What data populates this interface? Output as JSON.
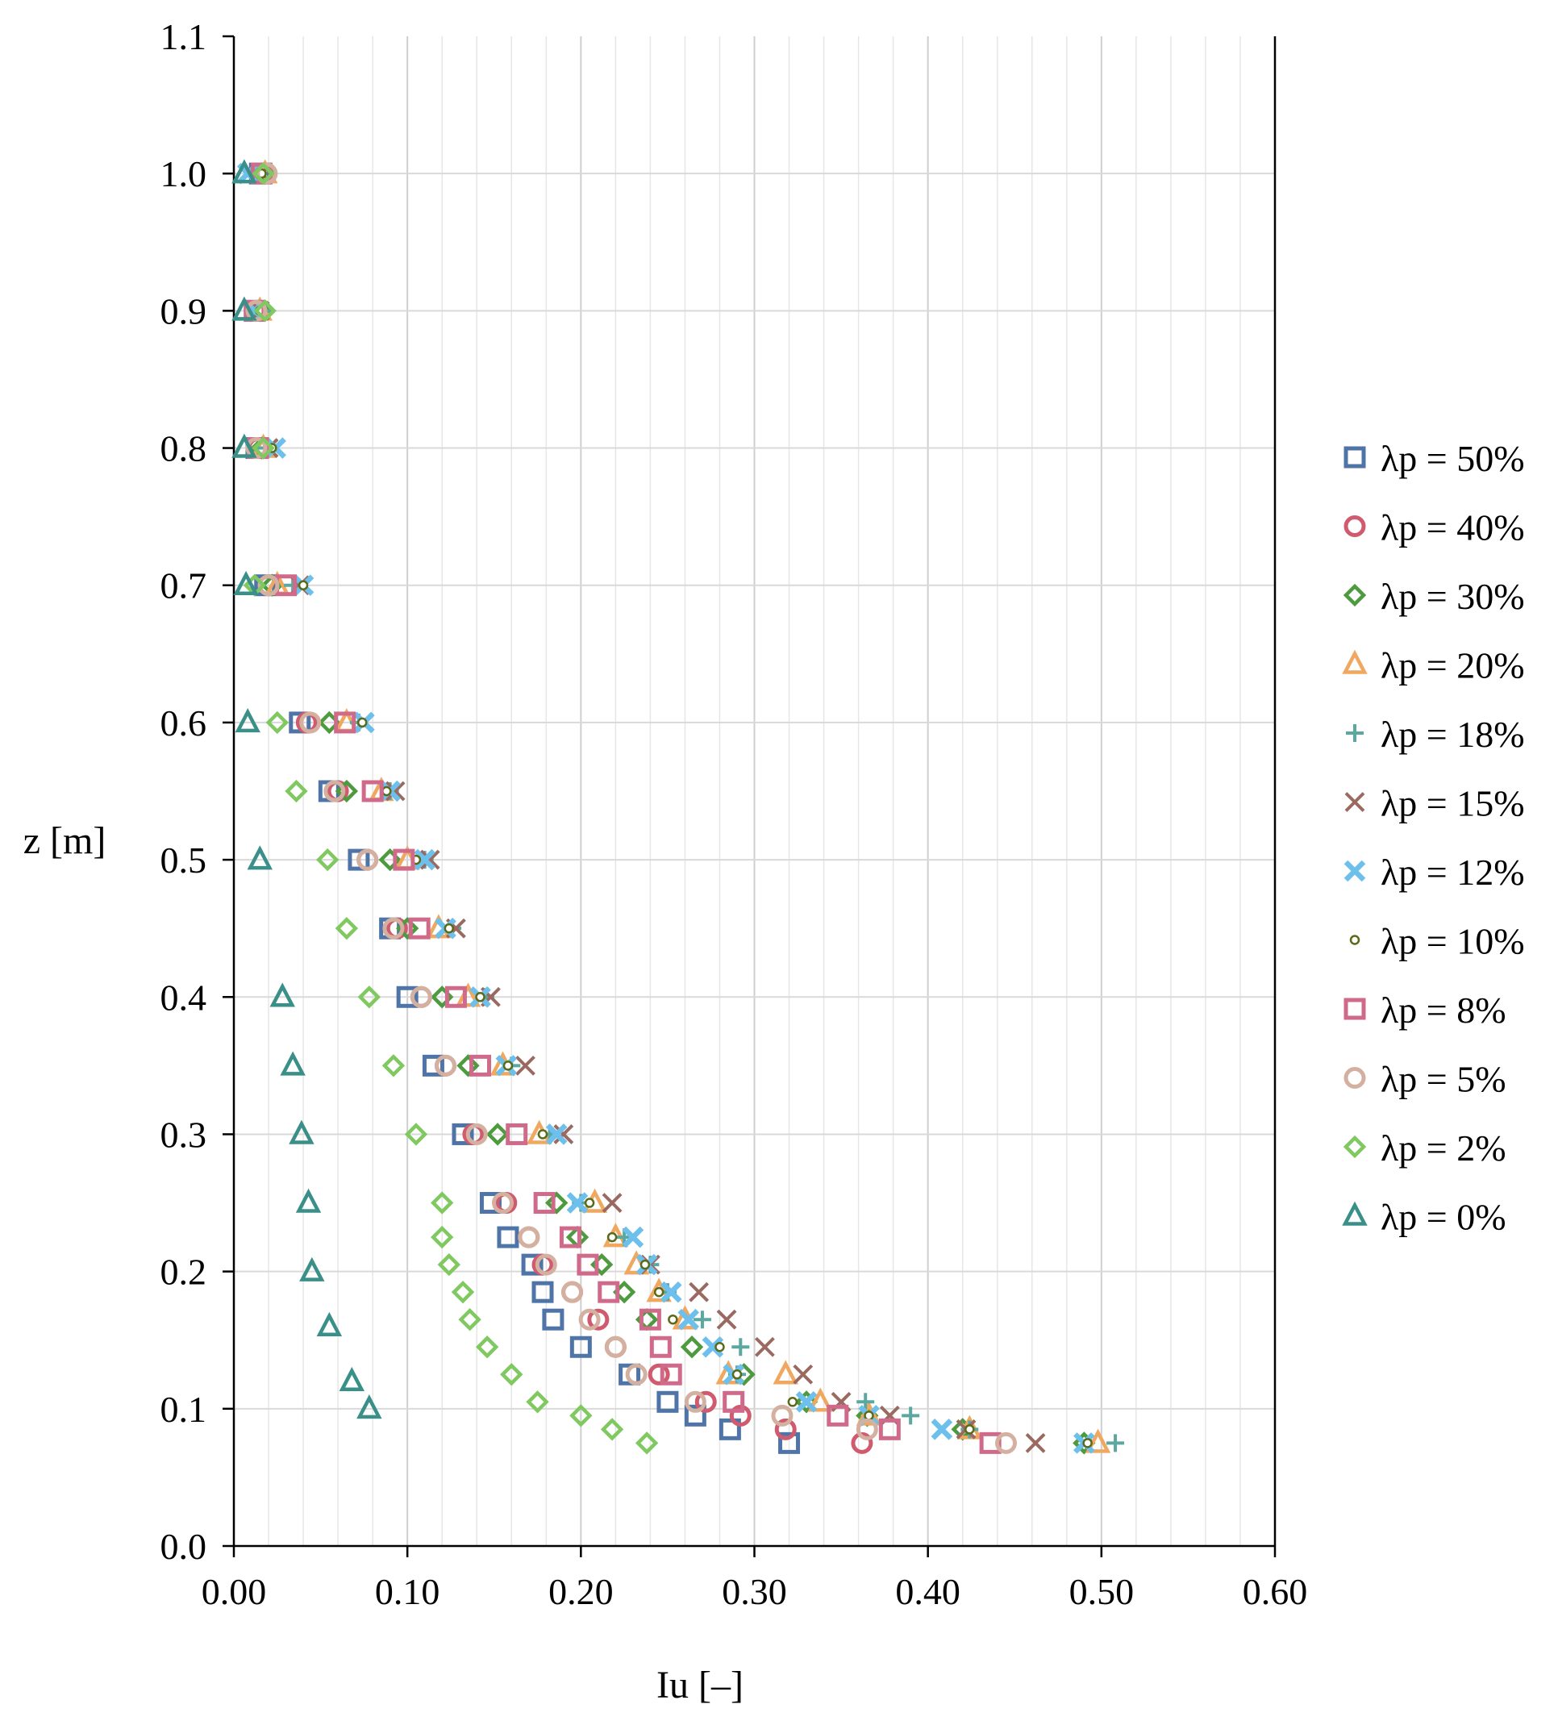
{
  "chart_data": {
    "type": "scatter",
    "title": "",
    "xlabel": "Iu [–]",
    "ylabel": "z [m]",
    "xlim": [
      0,
      0.6
    ],
    "ylim": [
      0,
      1.1
    ],
    "x_ticks": [
      "0.00",
      "0.10",
      "0.20",
      "0.30",
      "0.40",
      "0.50",
      "0.60"
    ],
    "y_ticks": [
      "0.0",
      "0.1",
      "0.2",
      "0.3",
      "0.4",
      "0.5",
      "0.6",
      "0.7",
      "0.8",
      "0.9",
      "1.0",
      "1.1"
    ],
    "grid": {
      "major": true,
      "minor_vertical": true
    },
    "legend_position": "right",
    "series": [
      {
        "name": "λp = 50%",
        "marker": "square",
        "color": "#4f74a8",
        "points": [
          [
            0.015,
            1.0
          ],
          [
            0.012,
            0.9
          ],
          [
            0.013,
            0.8
          ],
          [
            0.018,
            0.7
          ],
          [
            0.038,
            0.6
          ],
          [
            0.055,
            0.55
          ],
          [
            0.072,
            0.5
          ],
          [
            0.09,
            0.45
          ],
          [
            0.1,
            0.4
          ],
          [
            0.115,
            0.35
          ],
          [
            0.132,
            0.3
          ],
          [
            0.148,
            0.25
          ],
          [
            0.158,
            0.225
          ],
          [
            0.172,
            0.205
          ],
          [
            0.178,
            0.185
          ],
          [
            0.184,
            0.165
          ],
          [
            0.2,
            0.145
          ],
          [
            0.228,
            0.125
          ],
          [
            0.25,
            0.105
          ],
          [
            0.266,
            0.095
          ],
          [
            0.286,
            0.085
          ],
          [
            0.32,
            0.075
          ]
        ]
      },
      {
        "name": "λp = 40%",
        "marker": "circle",
        "color": "#d05a6e",
        "points": [
          [
            0.017,
            1.0
          ],
          [
            0.013,
            0.9
          ],
          [
            0.014,
            0.8
          ],
          [
            0.02,
            0.7
          ],
          [
            0.042,
            0.6
          ],
          [
            0.06,
            0.55
          ],
          [
            0.077,
            0.5
          ],
          [
            0.094,
            0.45
          ],
          [
            0.108,
            0.4
          ],
          [
            0.122,
            0.35
          ],
          [
            0.138,
            0.3
          ],
          [
            0.157,
            0.25
          ],
          [
            0.17,
            0.225
          ],
          [
            0.178,
            0.205
          ],
          [
            0.195,
            0.185
          ],
          [
            0.21,
            0.165
          ],
          [
            0.22,
            0.145
          ],
          [
            0.245,
            0.125
          ],
          [
            0.272,
            0.105
          ],
          [
            0.292,
            0.095
          ],
          [
            0.318,
            0.085
          ],
          [
            0.362,
            0.075
          ]
        ]
      },
      {
        "name": "λp = 30%",
        "marker": "diamond",
        "color": "#4e9a3e",
        "points": [
          [
            0.018,
            1.0
          ],
          [
            0.015,
            0.9
          ],
          [
            0.016,
            0.8
          ],
          [
            0.022,
            0.7
          ],
          [
            0.055,
            0.6
          ],
          [
            0.065,
            0.55
          ],
          [
            0.09,
            0.5
          ],
          [
            0.1,
            0.45
          ],
          [
            0.12,
            0.4
          ],
          [
            0.135,
            0.35
          ],
          [
            0.152,
            0.3
          ],
          [
            0.186,
            0.25
          ],
          [
            0.198,
            0.225
          ],
          [
            0.212,
            0.205
          ],
          [
            0.225,
            0.185
          ],
          [
            0.238,
            0.165
          ],
          [
            0.264,
            0.145
          ],
          [
            0.294,
            0.125
          ],
          [
            0.33,
            0.105
          ],
          [
            0.365,
            0.095
          ],
          [
            0.42,
            0.085
          ],
          [
            0.49,
            0.075
          ]
        ]
      },
      {
        "name": "λp = 20%",
        "marker": "triangle",
        "color": "#f0a860",
        "points": [
          [
            0.018,
            1.0
          ],
          [
            0.015,
            0.9
          ],
          [
            0.017,
            0.8
          ],
          [
            0.025,
            0.7
          ],
          [
            0.065,
            0.6
          ],
          [
            0.085,
            0.55
          ],
          [
            0.1,
            0.5
          ],
          [
            0.118,
            0.45
          ],
          [
            0.135,
            0.4
          ],
          [
            0.155,
            0.35
          ],
          [
            0.176,
            0.3
          ],
          [
            0.208,
            0.25
          ],
          [
            0.22,
            0.225
          ],
          [
            0.232,
            0.205
          ],
          [
            0.245,
            0.185
          ],
          [
            0.26,
            0.165
          ],
          [
            0.285,
            0.125
          ],
          [
            0.318,
            0.125
          ],
          [
            0.338,
            0.105
          ],
          [
            0.366,
            0.095
          ],
          [
            0.424,
            0.085
          ],
          [
            0.498,
            0.075
          ]
        ]
      },
      {
        "name": "λp = 18%",
        "marker": "plus",
        "color": "#5aa8a0",
        "points": [
          [
            0.014,
            1.0
          ],
          [
            0.016,
            0.9
          ],
          [
            0.018,
            0.8
          ],
          [
            0.034,
            0.7
          ],
          [
            0.072,
            0.6
          ],
          [
            0.09,
            0.55
          ],
          [
            0.11,
            0.5
          ],
          [
            0.126,
            0.45
          ],
          [
            0.145,
            0.4
          ],
          [
            0.16,
            0.35
          ],
          [
            0.182,
            0.3
          ],
          [
            0.2,
            0.25
          ],
          [
            0.225,
            0.225
          ],
          [
            0.24,
            0.205
          ],
          [
            0.25,
            0.185
          ],
          [
            0.27,
            0.165
          ],
          [
            0.292,
            0.145
          ],
          [
            0.29,
            0.125
          ],
          [
            0.364,
            0.105
          ],
          [
            0.39,
            0.095
          ],
          [
            0.424,
            0.085
          ],
          [
            0.508,
            0.075
          ]
        ]
      },
      {
        "name": "λp = 15%",
        "marker": "x",
        "color": "#9a6a60",
        "points": [
          [
            0.016,
            1.0
          ],
          [
            0.015,
            0.9
          ],
          [
            0.02,
            0.8
          ],
          [
            0.038,
            0.7
          ],
          [
            0.075,
            0.6
          ],
          [
            0.093,
            0.55
          ],
          [
            0.113,
            0.5
          ],
          [
            0.128,
            0.45
          ],
          [
            0.148,
            0.4
          ],
          [
            0.168,
            0.35
          ],
          [
            0.19,
            0.3
          ],
          [
            0.218,
            0.25
          ],
          [
            0.23,
            0.225
          ],
          [
            0.24,
            0.205
          ],
          [
            0.268,
            0.185
          ],
          [
            0.284,
            0.165
          ],
          [
            0.306,
            0.145
          ],
          [
            0.328,
            0.125
          ],
          [
            0.35,
            0.105
          ],
          [
            0.378,
            0.095
          ],
          [
            0.422,
            0.085
          ],
          [
            0.462,
            0.075
          ]
        ]
      },
      {
        "name": "λp = 12%",
        "marker": "xthick",
        "color": "#6ec0ec",
        "points": [
          [
            0.008,
            1.0
          ],
          [
            0.012,
            0.9
          ],
          [
            0.024,
            0.8
          ],
          [
            0.04,
            0.7
          ],
          [
            0.075,
            0.6
          ],
          [
            0.09,
            0.55
          ],
          [
            0.11,
            0.5
          ],
          [
            0.122,
            0.45
          ],
          [
            0.142,
            0.4
          ],
          [
            0.157,
            0.35
          ],
          [
            0.186,
            0.3
          ],
          [
            0.198,
            0.25
          ],
          [
            0.23,
            0.225
          ],
          [
            0.238,
            0.205
          ],
          [
            0.252,
            0.185
          ],
          [
            0.262,
            0.165
          ],
          [
            0.276,
            0.145
          ],
          [
            0.288,
            0.125
          ],
          [
            0.33,
            0.105
          ],
          [
            0.366,
            0.095
          ],
          [
            0.408,
            0.085
          ],
          [
            0.49,
            0.075
          ]
        ]
      },
      {
        "name": "λp = 10%",
        "marker": "dot",
        "color": "#5a6a1a",
        "points": [
          [
            0.016,
            1.0
          ],
          [
            0.015,
            0.9
          ],
          [
            0.022,
            0.8
          ],
          [
            0.04,
            0.7
          ],
          [
            0.074,
            0.6
          ],
          [
            0.088,
            0.55
          ],
          [
            0.105,
            0.5
          ],
          [
            0.124,
            0.45
          ],
          [
            0.142,
            0.4
          ],
          [
            0.158,
            0.35
          ],
          [
            0.178,
            0.3
          ],
          [
            0.205,
            0.25
          ],
          [
            0.218,
            0.225
          ],
          [
            0.237,
            0.205
          ],
          [
            0.245,
            0.185
          ],
          [
            0.253,
            0.165
          ],
          [
            0.28,
            0.145
          ],
          [
            0.29,
            0.125
          ],
          [
            0.322,
            0.105
          ],
          [
            0.366,
            0.095
          ],
          [
            0.424,
            0.085
          ],
          [
            0.492,
            0.075
          ]
        ]
      },
      {
        "name": "λp = 8%",
        "marker": "square",
        "color": "#d06a8a",
        "points": [
          [
            0.016,
            1.0
          ],
          [
            0.012,
            0.9
          ],
          [
            0.014,
            0.8
          ],
          [
            0.03,
            0.7
          ],
          [
            0.064,
            0.6
          ],
          [
            0.08,
            0.55
          ],
          [
            0.098,
            0.5
          ],
          [
            0.107,
            0.45
          ],
          [
            0.128,
            0.4
          ],
          [
            0.142,
            0.35
          ],
          [
            0.163,
            0.3
          ],
          [
            0.179,
            0.25
          ],
          [
            0.194,
            0.225
          ],
          [
            0.204,
            0.205
          ],
          [
            0.216,
            0.185
          ],
          [
            0.24,
            0.165
          ],
          [
            0.246,
            0.145
          ],
          [
            0.252,
            0.125
          ],
          [
            0.288,
            0.105
          ],
          [
            0.348,
            0.095
          ],
          [
            0.378,
            0.085
          ],
          [
            0.436,
            0.075
          ]
        ]
      },
      {
        "name": "λp = 5%",
        "marker": "circle",
        "color": "#d4b0a0",
        "points": [
          [
            0.019,
            1.0
          ],
          [
            0.013,
            0.9
          ],
          [
            0.013,
            0.8
          ],
          [
            0.02,
            0.7
          ],
          [
            0.044,
            0.6
          ],
          [
            0.058,
            0.55
          ],
          [
            0.077,
            0.5
          ],
          [
            0.092,
            0.45
          ],
          [
            0.108,
            0.4
          ],
          [
            0.122,
            0.35
          ],
          [
            0.14,
            0.3
          ],
          [
            0.155,
            0.25
          ],
          [
            0.17,
            0.225
          ],
          [
            0.18,
            0.205
          ],
          [
            0.195,
            0.185
          ],
          [
            0.205,
            0.165
          ],
          [
            0.22,
            0.145
          ],
          [
            0.232,
            0.125
          ],
          [
            0.266,
            0.105
          ],
          [
            0.316,
            0.095
          ],
          [
            0.365,
            0.085
          ],
          [
            0.445,
            0.075
          ]
        ]
      },
      {
        "name": "λp = 2%",
        "marker": "diamond",
        "color": "#80c860",
        "points": [
          [
            0.017,
            1.0
          ],
          [
            0.018,
            0.9
          ],
          [
            0.017,
            0.8
          ],
          [
            0.012,
            0.7
          ],
          [
            0.025,
            0.6
          ],
          [
            0.036,
            0.55
          ],
          [
            0.054,
            0.5
          ],
          [
            0.065,
            0.45
          ],
          [
            0.078,
            0.4
          ],
          [
            0.092,
            0.35
          ],
          [
            0.105,
            0.3
          ],
          [
            0.12,
            0.25
          ],
          [
            0.12,
            0.225
          ],
          [
            0.124,
            0.205
          ],
          [
            0.132,
            0.185
          ],
          [
            0.136,
            0.165
          ],
          [
            0.146,
            0.145
          ],
          [
            0.16,
            0.125
          ],
          [
            0.175,
            0.105
          ],
          [
            0.2,
            0.095
          ],
          [
            0.218,
            0.085
          ],
          [
            0.238,
            0.075
          ]
        ]
      },
      {
        "name": "λp = 0%",
        "marker": "triangle",
        "color": "#3a9088",
        "points": [
          [
            0.006,
            1.0
          ],
          [
            0.006,
            0.9
          ],
          [
            0.006,
            0.8
          ],
          [
            0.007,
            0.7
          ],
          [
            0.008,
            0.6
          ],
          [
            0.015,
            0.5
          ],
          [
            0.028,
            0.4
          ],
          [
            0.034,
            0.35
          ],
          [
            0.039,
            0.3
          ],
          [
            0.043,
            0.25
          ],
          [
            0.045,
            0.2
          ],
          [
            0.055,
            0.16
          ],
          [
            0.068,
            0.12
          ],
          [
            0.078,
            0.1
          ]
        ]
      }
    ]
  }
}
